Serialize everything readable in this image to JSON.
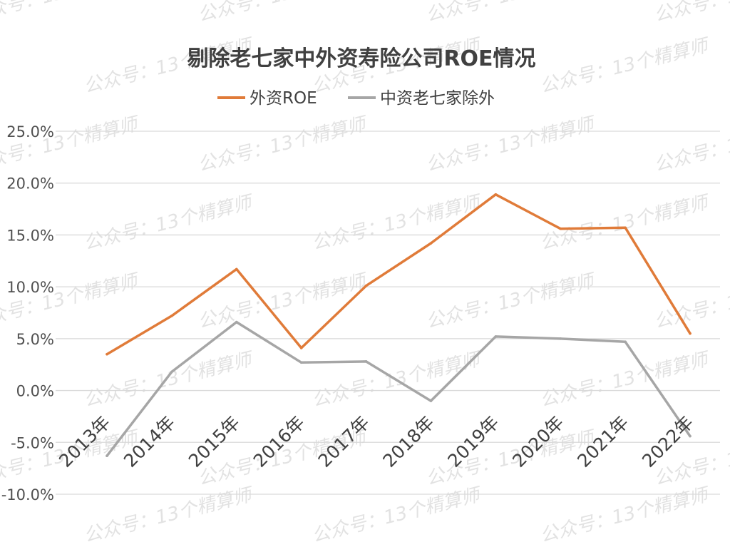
{
  "watermark": "公众号：13个精算师",
  "chart_data": {
    "type": "line",
    "title": "剔除老七家中外资寿险公司ROE情况",
    "categories": [
      "2013年",
      "2014年",
      "2015年",
      "2016年",
      "2017年",
      "2018年",
      "2019年",
      "2020年",
      "2021年",
      "2022年"
    ],
    "series": [
      {
        "name": "外资ROE",
        "color": "#e07b39",
        "values": [
          3.5,
          7.2,
          11.7,
          4.1,
          10.1,
          14.2,
          18.9,
          15.6,
          15.7,
          5.5
        ]
      },
      {
        "name": "中资老七家除外",
        "color": "#a6a6a6",
        "values": [
          -6.3,
          1.8,
          6.6,
          2.7,
          2.8,
          -1.0,
          5.2,
          5.0,
          4.7,
          -4.4
        ]
      }
    ],
    "yticks": [
      "25.0%",
      "20.0%",
      "15.0%",
      "10.0%",
      "5.0%",
      "0.0%",
      "-5.0%",
      "-10.0%"
    ],
    "ylim": [
      -10,
      25
    ],
    "grid": true,
    "legend_position": "top"
  }
}
